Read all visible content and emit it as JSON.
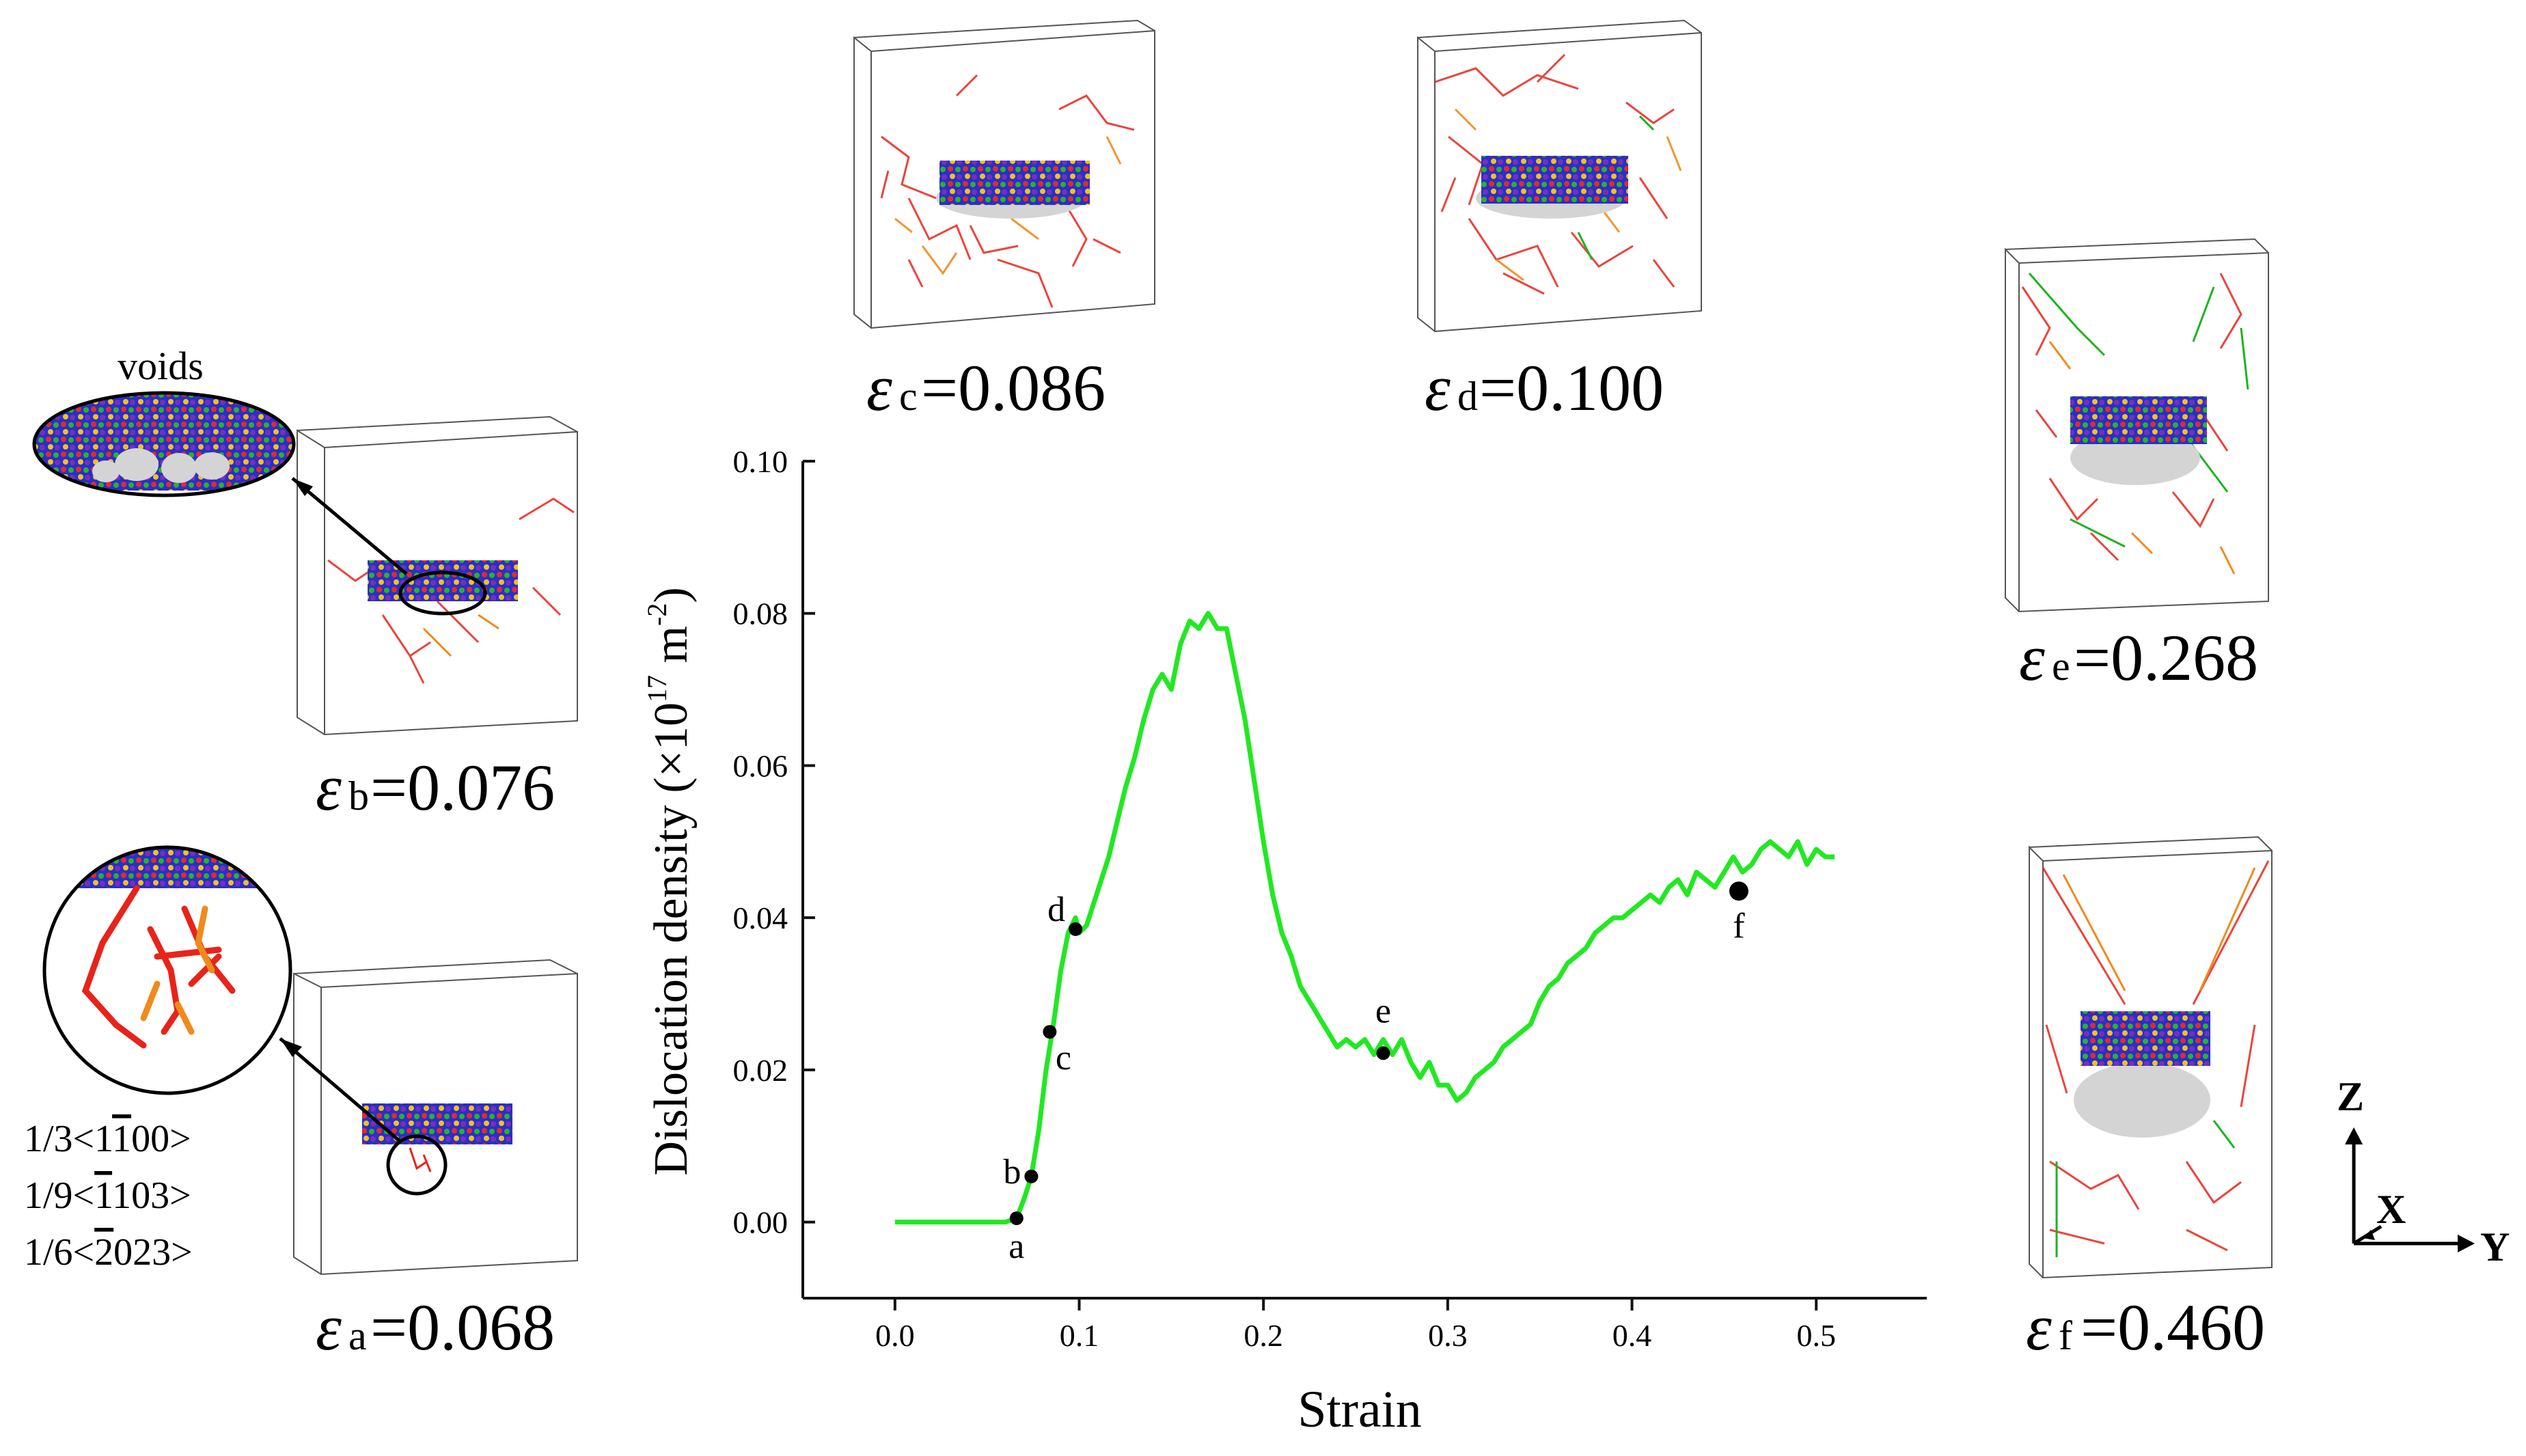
{
  "chart_data": {
    "type": "line",
    "title": "",
    "xlabel": "Strain",
    "ylabel": "Dislocation density (×10",
    "ylabel_exp": "17",
    "ylabel_unit": "m",
    "ylabel_unit_exp": "-2",
    "ylabel_close": ")",
    "xlim": [
      -0.05,
      0.56
    ],
    "ylim": [
      -0.01,
      0.1
    ],
    "xticks": [
      0.0,
      0.1,
      0.2,
      0.3,
      0.4,
      0.5
    ],
    "xtick_labels": [
      "0.0",
      "0.1",
      "0.2",
      "0.3",
      "0.4",
      "0.5"
    ],
    "yticks": [
      0.0,
      0.02,
      0.04,
      0.06,
      0.08,
      0.1
    ],
    "ytick_labels": [
      "0.00",
      "0.02",
      "0.04",
      "0.06",
      "0.08",
      "0.10"
    ],
    "series": [
      {
        "name": "dislocation density",
        "color": "#22e822",
        "x": [
          0.0,
          0.02,
          0.04,
          0.06,
          0.066,
          0.07,
          0.074,
          0.078,
          0.082,
          0.086,
          0.09,
          0.094,
          0.098,
          0.1,
          0.104,
          0.108,
          0.112,
          0.116,
          0.12,
          0.125,
          0.13,
          0.135,
          0.14,
          0.145,
          0.15,
          0.155,
          0.16,
          0.165,
          0.17,
          0.175,
          0.18,
          0.185,
          0.19,
          0.195,
          0.2,
          0.205,
          0.21,
          0.215,
          0.22,
          0.225,
          0.23,
          0.235,
          0.24,
          0.245,
          0.25,
          0.255,
          0.26,
          0.265,
          0.27,
          0.275,
          0.28,
          0.285,
          0.29,
          0.295,
          0.3,
          0.305,
          0.31,
          0.315,
          0.32,
          0.325,
          0.33,
          0.335,
          0.34,
          0.345,
          0.35,
          0.355,
          0.36,
          0.365,
          0.37,
          0.375,
          0.38,
          0.385,
          0.39,
          0.395,
          0.4,
          0.405,
          0.41,
          0.415,
          0.42,
          0.425,
          0.43,
          0.435,
          0.44,
          0.445,
          0.45,
          0.455,
          0.46,
          0.465,
          0.47,
          0.475,
          0.48,
          0.485,
          0.49,
          0.495,
          0.5,
          0.505,
          0.51
        ],
        "y": [
          0.0,
          0.0,
          0.0,
          0.0,
          0.0005,
          0.003,
          0.006,
          0.012,
          0.02,
          0.026,
          0.033,
          0.038,
          0.04,
          0.038,
          0.039,
          0.042,
          0.045,
          0.048,
          0.052,
          0.057,
          0.061,
          0.066,
          0.07,
          0.072,
          0.07,
          0.076,
          0.079,
          0.078,
          0.08,
          0.078,
          0.078,
          0.072,
          0.066,
          0.058,
          0.05,
          0.043,
          0.038,
          0.035,
          0.031,
          0.029,
          0.027,
          0.025,
          0.023,
          0.024,
          0.023,
          0.024,
          0.022,
          0.024,
          0.022,
          0.024,
          0.021,
          0.019,
          0.021,
          0.018,
          0.018,
          0.016,
          0.017,
          0.019,
          0.02,
          0.021,
          0.023,
          0.024,
          0.025,
          0.026,
          0.029,
          0.031,
          0.032,
          0.034,
          0.035,
          0.036,
          0.038,
          0.039,
          0.04,
          0.04,
          0.041,
          0.042,
          0.043,
          0.042,
          0.044,
          0.045,
          0.043,
          0.046,
          0.045,
          0.044,
          0.046,
          0.048,
          0.046,
          0.047,
          0.049,
          0.05,
          0.049,
          0.048,
          0.05,
          0.047,
          0.049,
          0.048,
          0.048
        ]
      }
    ],
    "markers": [
      {
        "label": "a",
        "x": 0.066,
        "y": 0.0005
      },
      {
        "label": "b",
        "x": 0.074,
        "y": 0.006
      },
      {
        "label": "c",
        "x": 0.084,
        "y": 0.025
      },
      {
        "label": "d",
        "x": 0.098,
        "y": 0.0385
      },
      {
        "label": "e",
        "x": 0.265,
        "y": 0.0222
      },
      {
        "label": "f",
        "x": 0.458,
        "y": 0.0435
      }
    ]
  },
  "snapshots": {
    "a": {
      "sym": "ε",
      "sub": "a",
      "val": "=0.068"
    },
    "b": {
      "sym": "ε",
      "sub": "b",
      "val": "=0.076"
    },
    "c": {
      "sym": "ε",
      "sub": "c",
      "val": "=0.086"
    },
    "d": {
      "sym": "ε",
      "sub": "d",
      "val": "=0.100"
    },
    "e": {
      "sym": "ε",
      "sub": "e",
      "val": "=0.268"
    },
    "f": {
      "sym": "ε",
      "sub": "f",
      "val": "=0.460"
    }
  },
  "callouts": {
    "voids": "voids",
    "burgers": [
      "1/3<1̅1̅00>",
      "1/9<̅1103>",
      "1/6<̅20̅ 23>"
    ]
  },
  "burgers_lines": [
    {
      "pre": "1/3<1",
      "bar": "1",
      "post": "00>"
    },
    {
      "pre": "1/9<",
      "bar": "1",
      "post": "103>"
    },
    {
      "pre": "1/6<",
      "bar": "2",
      "post": "023>"
    }
  ],
  "axes_triad": {
    "z": "Z",
    "x": "X",
    "y": "Y"
  },
  "colors": {
    "curve": "#22e822",
    "dislocation_red": "#e8231a",
    "dislocation_orange": "#f08a1c",
    "dislocation_green": "#1cb41c",
    "atoms_blue": "#2233cc",
    "void_gray": "#cfcfcf"
  }
}
